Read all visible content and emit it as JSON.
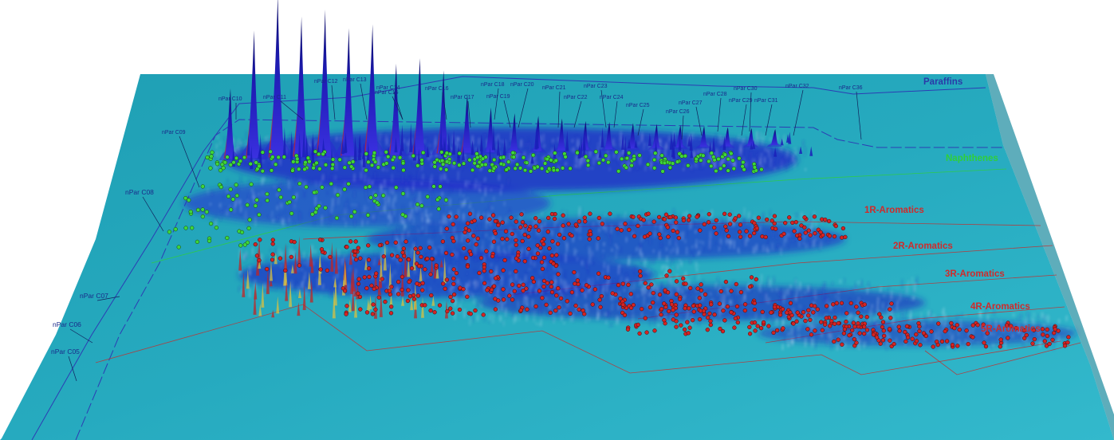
{
  "chart_data": {
    "type": "surface-3d",
    "colors": {
      "plane": "#23aabe",
      "plane_dark": "#1c98ad",
      "plane_light": "#3bbfd0",
      "peak_low": "#2a2ad0",
      "peak_high": "#0a0a70",
      "peak_edge": "#d02020",
      "naphthenes_marker": "#3ed63a",
      "aromatics_marker": "#d42424",
      "boundary_blue": "#2c3cb4",
      "boundary_red": "#c03030",
      "paraffins_label": "#2a3aa8",
      "naphthenes_label": "#2fcf3a",
      "aromatics_label": "#d02a2a"
    },
    "regions": [
      {
        "name": "Paraffins",
        "color": "#2a3aa8"
      },
      {
        "name": "Naphthenes",
        "color": "#2fcf3a"
      },
      {
        "name": "1R-Aromatics",
        "color": "#d02a2a"
      },
      {
        "name": "2R-Aromatics",
        "color": "#d02a2a"
      },
      {
        "name": "3R-Aromatics",
        "color": "#d02a2a"
      },
      {
        "name": "4R-Aromatics",
        "color": "#d02a2a"
      },
      {
        "name": "5R-Aromatics",
        "color": "#d02a2a"
      }
    ],
    "paraffin_labels": [
      {
        "text": "nPar C05",
        "carbon": 5
      },
      {
        "text": "nPar C06",
        "carbon": 6
      },
      {
        "text": "nPar C07",
        "carbon": 7
      },
      {
        "text": "nPar C08",
        "carbon": 8
      },
      {
        "text": "nPar C09",
        "carbon": 9
      },
      {
        "text": "nPar C10",
        "carbon": 10
      },
      {
        "text": "nPar C11",
        "carbon": 11
      },
      {
        "text": "nPar C12",
        "carbon": 12
      },
      {
        "text": "nPar C13",
        "carbon": 13
      },
      {
        "text": "nPar C14",
        "carbon": 14
      },
      {
        "text": "nPar C15",
        "carbon": 15
      },
      {
        "text": "nPar C16",
        "carbon": 16
      },
      {
        "text": "nPar C17",
        "carbon": 17
      },
      {
        "text": "nPar C18",
        "carbon": 18
      },
      {
        "text": "nPar C19",
        "carbon": 19
      },
      {
        "text": "nPar C20",
        "carbon": 20
      },
      {
        "text": "nPar C21",
        "carbon": 21
      },
      {
        "text": "nPar C22",
        "carbon": 22
      },
      {
        "text": "nPar C23",
        "carbon": 23
      },
      {
        "text": "nPar C24",
        "carbon": 24
      },
      {
        "text": "nPar C25",
        "carbon": 25
      },
      {
        "text": "nPar C26",
        "carbon": 26
      },
      {
        "text": "nPar C27",
        "carbon": 27
      },
      {
        "text": "nPar C28",
        "carbon": 28
      },
      {
        "text": "nPar C29",
        "carbon": 29
      },
      {
        "text": "nPar C30",
        "carbon": 30
      },
      {
        "text": "nPar C31",
        "carbon": 31
      },
      {
        "text": "nPar C32",
        "carbon": 32
      },
      {
        "text": "nPar C36",
        "carbon": 36
      }
    ],
    "peaks": [
      {
        "carbon": 9,
        "height": 0.42
      },
      {
        "carbon": 10,
        "height": 0.78
      },
      {
        "carbon": 11,
        "height": 1.0
      },
      {
        "carbon": 12,
        "height": 0.86
      },
      {
        "carbon": 13,
        "height": 0.9
      },
      {
        "carbon": 14,
        "height": 0.78
      },
      {
        "carbon": 15,
        "height": 0.8
      },
      {
        "carbon": 16,
        "height": 0.55
      },
      {
        "carbon": 17,
        "height": 0.58
      },
      {
        "carbon": 18,
        "height": 0.5
      },
      {
        "carbon": 19,
        "height": 0.35
      },
      {
        "carbon": 20,
        "height": 0.26
      },
      {
        "carbon": 21,
        "height": 0.22
      },
      {
        "carbon": 22,
        "height": 0.2
      },
      {
        "carbon": 23,
        "height": 0.18
      },
      {
        "carbon": 24,
        "height": 0.16
      },
      {
        "carbon": 25,
        "height": 0.15
      },
      {
        "carbon": 26,
        "height": 0.14
      },
      {
        "carbon": 27,
        "height": 0.13
      },
      {
        "carbon": 28,
        "height": 0.12
      },
      {
        "carbon": 29,
        "height": 0.11
      },
      {
        "carbon": 30,
        "height": 0.1
      },
      {
        "carbon": 31,
        "height": 0.09
      },
      {
        "carbon": 32,
        "height": 0.08
      }
    ]
  }
}
